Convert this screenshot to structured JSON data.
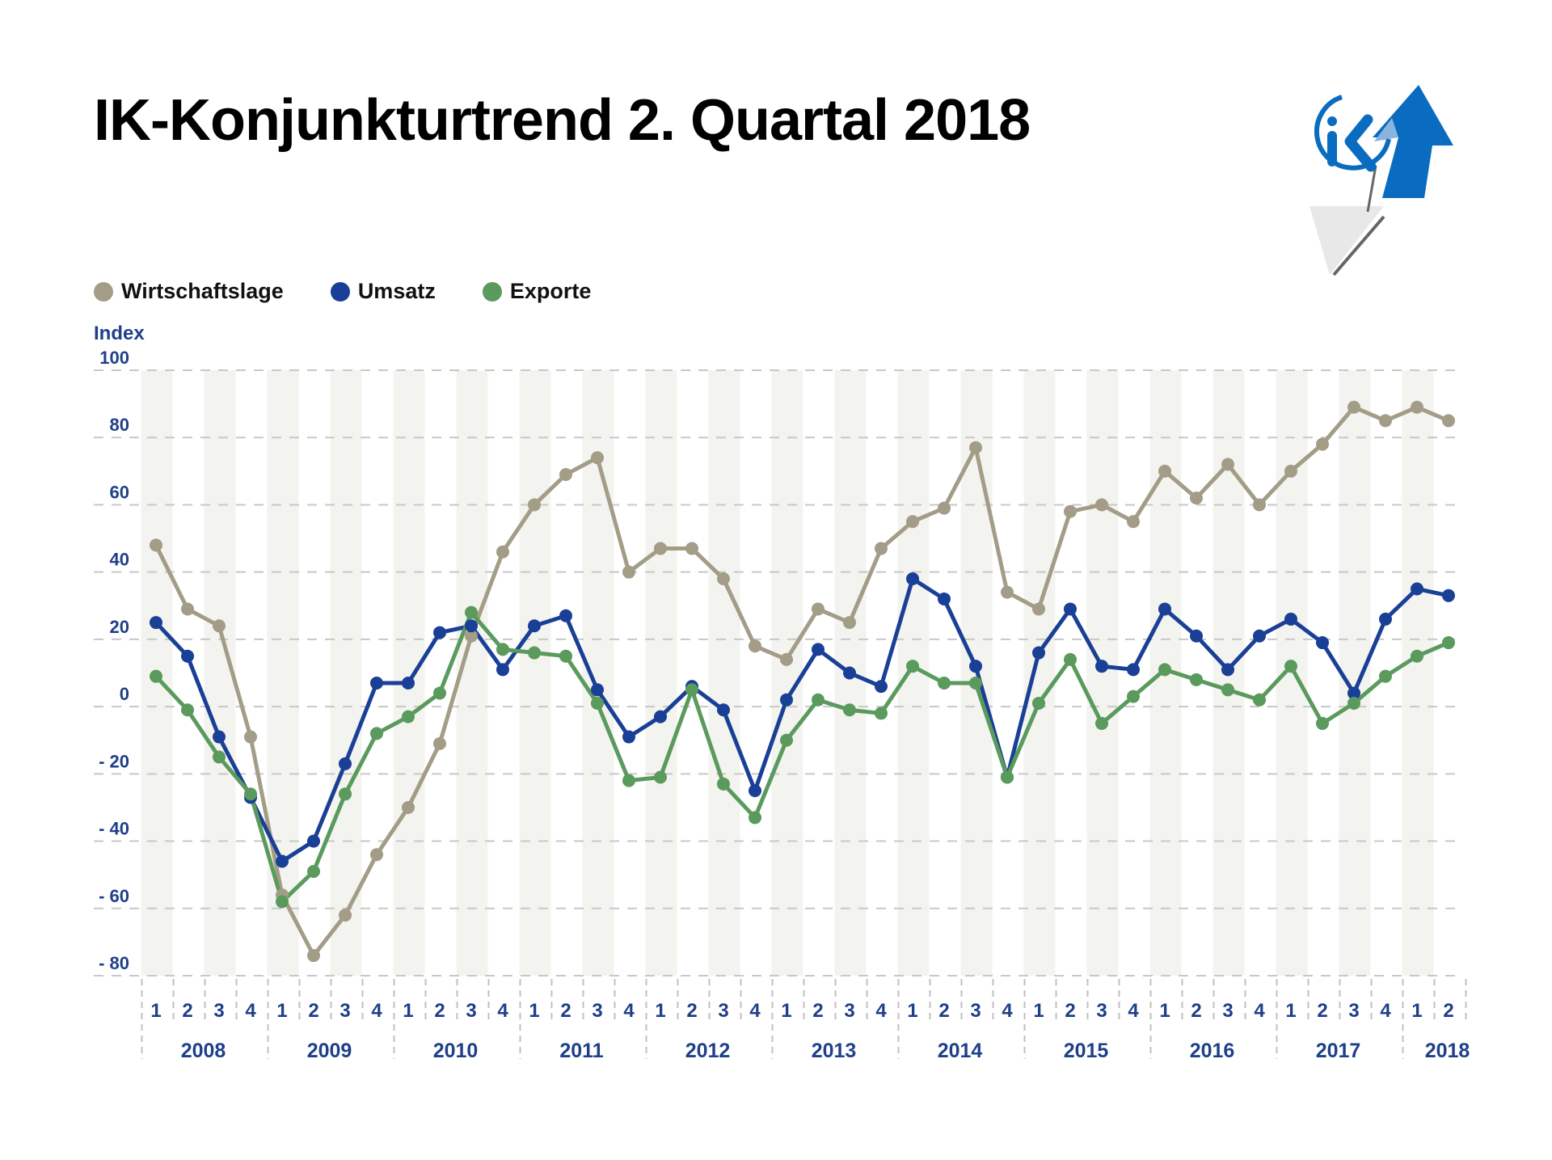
{
  "title": "IK-Konjunkturtrend 2. Quartal 2018",
  "logo": {
    "name": "IK logo with up and down arrows",
    "text": "iK",
    "colors": {
      "primary": "#0a6cc0",
      "light": "#8ab4e0",
      "grey": "#e6e6e6"
    }
  },
  "legend": [
    {
      "label": "Wirtschaftslage",
      "color": "#a39c87"
    },
    {
      "label": "Umsatz",
      "color": "#1a3f96"
    },
    {
      "label": "Exporte",
      "color": "#5a9a5c"
    }
  ],
  "chart_data": {
    "type": "line",
    "title": "IK-Konjunkturtrend 2. Quartal 2018",
    "ylabel": "Index",
    "xlabel": "",
    "ylim": [
      -80,
      100
    ],
    "yticks": [
      100,
      80,
      60,
      40,
      20,
      0,
      -20,
      -40,
      -60,
      -80
    ],
    "ytick_labels": [
      "100",
      "80",
      "60",
      "40",
      "20",
      "0",
      "- 20",
      "- 40",
      "- 60",
      "- 80"
    ],
    "grid": true,
    "legend_position": "top-left",
    "years": [
      "2008",
      "2009",
      "2010",
      "2011",
      "2012",
      "2013",
      "2014",
      "2015",
      "2016",
      "2017",
      "2018"
    ],
    "x": [
      "1",
      "2",
      "3",
      "4",
      "1",
      "2",
      "3",
      "4",
      "1",
      "2",
      "3",
      "4",
      "1",
      "2",
      "3",
      "4",
      "1",
      "2",
      "3",
      "4",
      "1",
      "2",
      "3",
      "4",
      "1",
      "2",
      "3",
      "4",
      "1",
      "2",
      "3",
      "4",
      "1",
      "2",
      "3",
      "4",
      "1",
      "2",
      "3",
      "4",
      "1",
      "2"
    ],
    "series": [
      {
        "name": "Wirtschaftslage",
        "color": "#a39c87",
        "values": [
          48,
          29,
          24,
          -9,
          -56,
          -74,
          -62,
          -44,
          -30,
          -11,
          21,
          46,
          60,
          69,
          74,
          40,
          47,
          47,
          38,
          18,
          14,
          29,
          25,
          47,
          55,
          59,
          77,
          34,
          29,
          58,
          60,
          55,
          70,
          62,
          72,
          60,
          70,
          78,
          89,
          85,
          89,
          85
        ]
      },
      {
        "name": "Umsatz",
        "color": "#1a3f96",
        "values": [
          25,
          15,
          -9,
          -27,
          -46,
          -40,
          -17,
          7,
          7,
          22,
          24,
          11,
          24,
          27,
          5,
          -9,
          -3,
          6,
          -1,
          -25,
          2,
          17,
          10,
          6,
          38,
          32,
          12,
          -21,
          16,
          29,
          12,
          11,
          29,
          21,
          11,
          21,
          26,
          19,
          4,
          26,
          35,
          33
        ]
      },
      {
        "name": "Exporte",
        "color": "#5a9a5c",
        "values": [
          9,
          -1,
          -15,
          -26,
          -58,
          -49,
          -26,
          -8,
          -3,
          4,
          28,
          17,
          16,
          15,
          1,
          -22,
          -21,
          5,
          -23,
          -33,
          -10,
          2,
          -1,
          -2,
          12,
          7,
          7,
          -21,
          1,
          14,
          -5,
          3,
          11,
          8,
          5,
          2,
          12,
          -5,
          1,
          9,
          15,
          19
        ]
      }
    ]
  }
}
